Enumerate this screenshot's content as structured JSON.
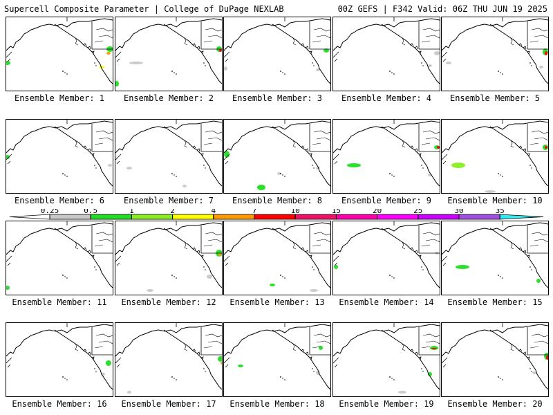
{
  "header": {
    "left": "Supercell Composite Parameter | College of DuPage NEXLAB",
    "right": "00Z GEFS | F342 Valid: 06Z THU JUN 19 2025"
  },
  "panel_label_prefix": "Ensemble Member:",
  "members": [
    {
      "number": "1"
    },
    {
      "number": "2"
    },
    {
      "number": "3"
    },
    {
      "number": "4"
    },
    {
      "number": "5"
    },
    {
      "number": "6"
    },
    {
      "number": "7"
    },
    {
      "number": "8"
    },
    {
      "number": "9"
    },
    {
      "number": "10"
    },
    {
      "number": "11"
    },
    {
      "number": "12"
    },
    {
      "number": "13"
    },
    {
      "number": "14"
    },
    {
      "number": "15"
    },
    {
      "number": "16"
    },
    {
      "number": "17"
    },
    {
      "number": "18"
    },
    {
      "number": "19"
    },
    {
      "number": "20"
    }
  ],
  "colorbar": {
    "labels": [
      "0.25",
      "0.5",
      "1",
      "2",
      "4",
      "7",
      "10",
      "15",
      "20",
      "25",
      "30",
      "35"
    ],
    "colors": [
      "#c8c8c8",
      "#22dd22",
      "#88ee22",
      "#ffff00",
      "#ff9900",
      "#ff0000",
      "#ee1166",
      "#ff00aa",
      "#ff00ff",
      "#cc00ff",
      "#a050e0",
      "#33e8ee"
    ]
  }
}
